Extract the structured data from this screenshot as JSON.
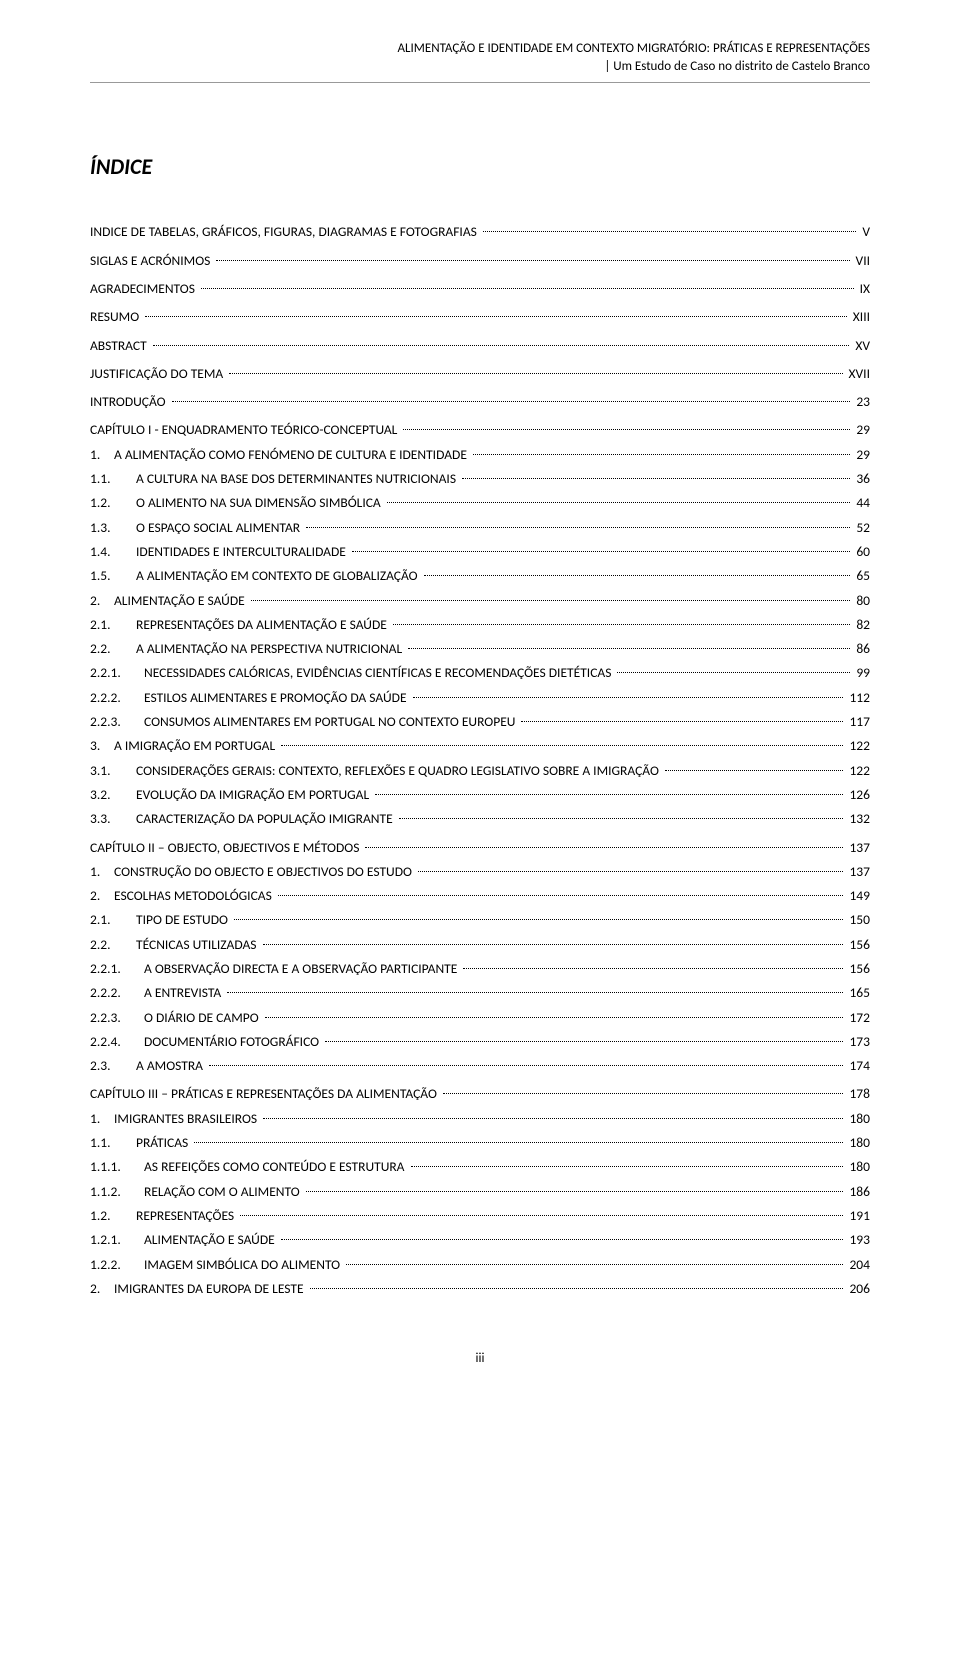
{
  "header": {
    "line1": "ALIMENTAÇÃO E IDENTIDADE EM CONTEXTO MIGRATÓRIO: PRÁTICAS E REPRESENTAÇÕES",
    "line2": "| Um Estudo de Caso no distrito de Castelo Branco"
  },
  "title": "ÍNDICE",
  "footer": "iii",
  "toc": [
    {
      "level": 0,
      "num": "",
      "label": "INDICE DE TABELAS, GRÁFICOS, FIGURAS, DIAGRAMAS E FOTOGRAFIAS",
      "page": "V"
    },
    {
      "level": 0,
      "num": "",
      "label": "SIGLAS E ACRÓNIMOS",
      "page": "VII"
    },
    {
      "level": 0,
      "num": "",
      "label": "AGRADECIMENTOS",
      "page": "IX"
    },
    {
      "level": 0,
      "num": "",
      "label": "RESUMO",
      "page": "XIII"
    },
    {
      "level": 0,
      "num": "",
      "label": "ABSTRACT",
      "page": "XV"
    },
    {
      "level": 0,
      "num": "",
      "label": "JUSTIFICAÇÃO DO TEMA",
      "page": "XVII"
    },
    {
      "level": 0,
      "num": "",
      "label": "INTRODUÇÃO",
      "page": "23"
    },
    {
      "level": 0,
      "num": "",
      "label": "CAPÍTULO I - ENQUADRAMENTO TEÓRICO-CONCEPTUAL",
      "page": "29"
    },
    {
      "level": 1,
      "num": "1.",
      "label": "A ALIMENTAÇÃO COMO FENÓMENO DE CULTURA E IDENTIDADE",
      "page": "29"
    },
    {
      "level": 2,
      "num": "1.1.",
      "label": "A CULTURA NA BASE DOS DETERMINANTES NUTRICIONAIS",
      "page": "36"
    },
    {
      "level": 2,
      "num": "1.2.",
      "label": "O ALIMENTO NA SUA DIMENSÃO SIMBÓLICA",
      "page": "44"
    },
    {
      "level": 2,
      "num": "1.3.",
      "label": "O ESPAÇO SOCIAL ALIMENTAR",
      "page": "52"
    },
    {
      "level": 2,
      "num": "1.4.",
      "label": "IDENTIDADES E INTERCULTURALIDADE",
      "page": "60"
    },
    {
      "level": 2,
      "num": "1.5.",
      "label": "A ALIMENTAÇÃO EM CONTEXTO DE GLOBALIZAÇÃO",
      "page": "65"
    },
    {
      "level": 1,
      "num": "2.",
      "label": "ALIMENTAÇÃO E SAÚDE",
      "page": "80"
    },
    {
      "level": 2,
      "num": "2.1.",
      "label": "REPRESENTAÇÕES DA ALIMENTAÇÃO E SAÚDE",
      "page": "82"
    },
    {
      "level": 2,
      "num": "2.2.",
      "label": "A ALIMENTAÇÃO NA PERSPECTIVA NUTRICIONAL",
      "page": "86"
    },
    {
      "level": 3,
      "num": "2.2.1.",
      "label": "NECESSIDADES CALÓRICAS, EVIDÊNCIAS CIENTÍFICAS E RECOMENDAÇÕES DIETÉTICAS",
      "page": "99"
    },
    {
      "level": 3,
      "num": "2.2.2.",
      "label": "ESTILOS ALIMENTARES E PROMOÇÃO DA SAÚDE",
      "page": "112"
    },
    {
      "level": 3,
      "num": "2.2.3.",
      "label": "CONSUMOS ALIMENTARES EM PORTUGAL NO CONTEXTO EUROPEU",
      "page": "117"
    },
    {
      "level": 1,
      "num": "3.",
      "label": "A IMIGRAÇÃO EM PORTUGAL",
      "page": "122"
    },
    {
      "level": 2,
      "num": "3.1.",
      "label": "CONSIDERAÇÕES GERAIS: CONTEXTO, REFLEXÕES E QUADRO LEGISLATIVO SOBRE A IMIGRAÇÃO",
      "page": "122"
    },
    {
      "level": 2,
      "num": "3.2.",
      "label": "EVOLUÇÃO DA IMIGRAÇÃO EM PORTUGAL",
      "page": "126"
    },
    {
      "level": 2,
      "num": "3.3.",
      "label": "CARACTERIZAÇÃO DA POPULAÇÃO IMIGRANTE",
      "page": "132"
    },
    {
      "level": 0,
      "num": "",
      "label": "CAPÍTULO II – OBJECTO, OBJECTIVOS E MÉTODOS",
      "page": "137"
    },
    {
      "level": 1,
      "num": "1.",
      "label": "CONSTRUÇÃO DO OBJECTO E OBJECTIVOS DO ESTUDO",
      "page": "137"
    },
    {
      "level": 1,
      "num": "2.",
      "label": "ESCOLHAS METODOLÓGICAS",
      "page": "149"
    },
    {
      "level": 2,
      "num": "2.1.",
      "label": "TIPO DE ESTUDO",
      "page": "150"
    },
    {
      "level": 2,
      "num": "2.2.",
      "label": "TÉCNICAS UTILIZADAS",
      "page": "156"
    },
    {
      "level": 3,
      "num": "2.2.1.",
      "label": "A OBSERVAÇÃO DIRECTA E A OBSERVAÇÃO PARTICIPANTE",
      "page": "156"
    },
    {
      "level": 3,
      "num": "2.2.2.",
      "label": "A ENTREVISTA",
      "page": "165"
    },
    {
      "level": 3,
      "num": "2.2.3.",
      "label": "O DIÁRIO DE CAMPO",
      "page": "172"
    },
    {
      "level": 3,
      "num": "2.2.4.",
      "label": "DOCUMENTÁRIO FOTOGRÁFICO",
      "page": "173"
    },
    {
      "level": 2,
      "num": "2.3.",
      "label": "A AMOSTRA",
      "page": "174"
    },
    {
      "level": 0,
      "num": "",
      "label": "CAPÍTULO III – PRÁTICAS E REPRESENTAÇÕES DA ALIMENTAÇÃO",
      "page": "178"
    },
    {
      "level": 1,
      "num": "1.",
      "label": "IMIGRANTES BRASILEIROS",
      "page": "180"
    },
    {
      "level": 2,
      "num": "1.1.",
      "label": "PRÁTICAS",
      "page": "180"
    },
    {
      "level": 3,
      "num": "1.1.1.",
      "label": "AS REFEIÇÕES COMO CONTEÚDO E ESTRUTURA",
      "page": "180"
    },
    {
      "level": 3,
      "num": "1.1.2.",
      "label": "RELAÇÃO COM O ALIMENTO",
      "page": "186"
    },
    {
      "level": 2,
      "num": "1.2.",
      "label": "REPRESENTAÇÕES",
      "page": "191"
    },
    {
      "level": 3,
      "num": "1.2.1.",
      "label": "ALIMENTAÇÃO E SAÚDE",
      "page": "193"
    },
    {
      "level": 3,
      "num": "1.2.2.",
      "label": "IMAGEM SIMBÓLICA DO ALIMENTO",
      "page": "204"
    },
    {
      "level": 1,
      "num": "2.",
      "label": "IMIGRANTES DA EUROPA DE LESTE",
      "page": "206"
    }
  ]
}
